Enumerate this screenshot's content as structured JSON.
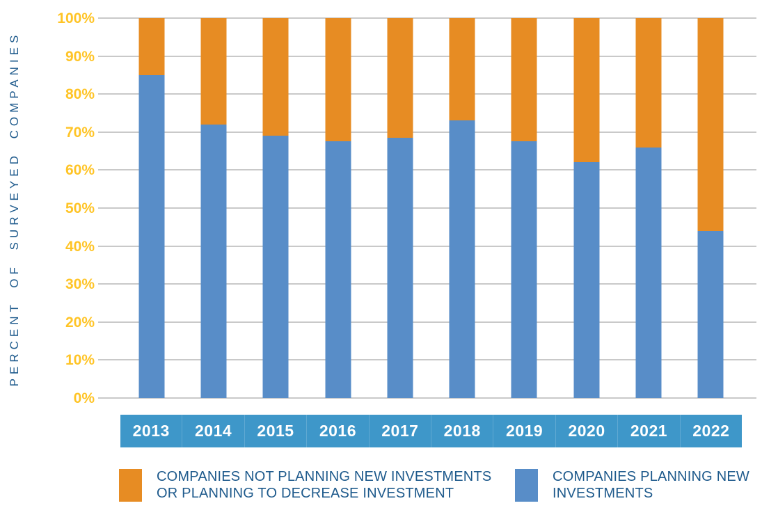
{
  "chart_data": {
    "type": "bar",
    "stacked": true,
    "title": "",
    "xlabel": "",
    "ylabel": "PERCENT OF SURVEYED COMPANIES",
    "ylim": [
      0,
      100
    ],
    "grid": true,
    "legend_position": "bottom",
    "categories": [
      "2013",
      "2014",
      "2015",
      "2016",
      "2017",
      "2018",
      "2019",
      "2020",
      "2021",
      "2022"
    ],
    "yticks": [
      "0%",
      "10%",
      "20%",
      "30%",
      "40%",
      "50%",
      "60%",
      "70%",
      "80%",
      "90%",
      "100%"
    ],
    "series": [
      {
        "name": "COMPANIES PLANNING NEW INVESTMENTS",
        "color": "#588DC8",
        "values": [
          85,
          72,
          69,
          67.5,
          68.5,
          73,
          67.5,
          62,
          66,
          44
        ]
      },
      {
        "name": "COMPANIES NOT PLANNING NEW INVESTMENTS OR PLANNING TO DECREASE INVESTMENT",
        "color": "#E78C23",
        "values": [
          15,
          28,
          31,
          32.5,
          31.5,
          27,
          32.5,
          38,
          34,
          56
        ]
      }
    ]
  },
  "legend": {
    "not_planning": {
      "line1": "COMPANIES NOT PLANNING NEW INVESTMENTS",
      "line2": "OR PLANNING TO DECREASE INVESTMENT"
    },
    "planning": {
      "line1": "COMPANIES PLANNING NEW",
      "line2": "INVESTMENTS"
    }
  },
  "colors": {
    "bar_blue": "#588DC8",
    "orange": "#E78C23",
    "band_blue": "#3E97C9",
    "tick_yellow": "#FFC426",
    "text_navy": "#1E5A8C",
    "gridline_gray": "#C9C9C9"
  }
}
